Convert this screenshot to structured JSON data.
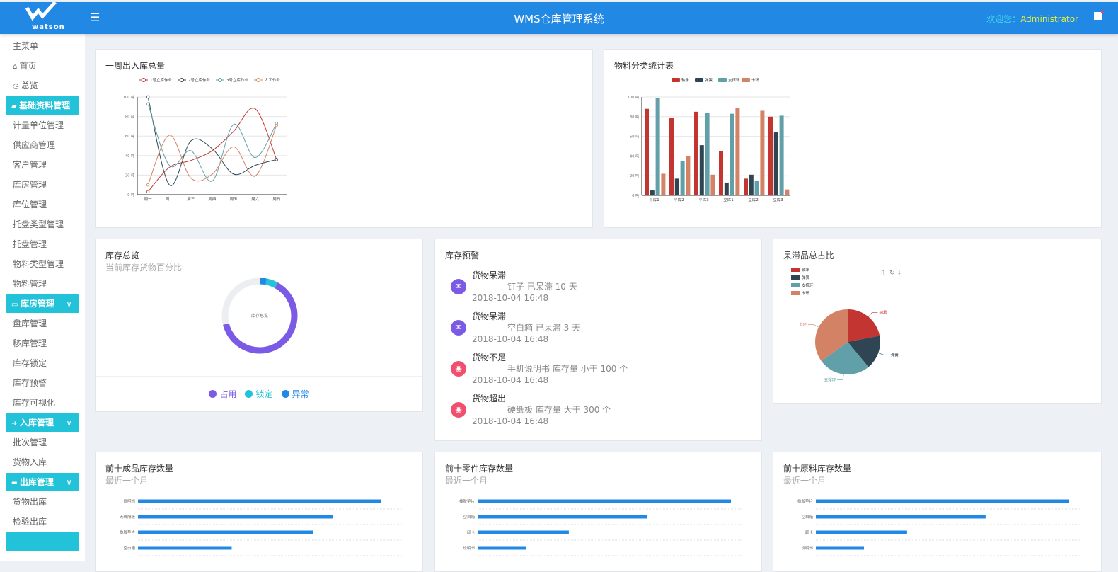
{
  "header": {
    "logo_text": "watson",
    "title": "WMS仓库管理系统",
    "welcome_label": "欢迎您：",
    "user": "Administrator",
    "menu_icon": "hamburger-icon",
    "flag_icon": "flag-icon"
  },
  "sidebar": [
    {
      "type": "item",
      "label": "主菜单"
    },
    {
      "type": "item",
      "label": "首页",
      "icon": "⌂"
    },
    {
      "type": "item",
      "label": "总览",
      "icon": "◷"
    },
    {
      "type": "head",
      "label": "基础资料管理",
      "icon": "▰"
    },
    {
      "type": "item",
      "label": "计量单位管理"
    },
    {
      "type": "item",
      "label": "供应商管理"
    },
    {
      "type": "item",
      "label": "客户管理"
    },
    {
      "type": "item",
      "label": "库房管理"
    },
    {
      "type": "item",
      "label": "库位管理"
    },
    {
      "type": "item",
      "label": "托盘类型管理"
    },
    {
      "type": "item",
      "label": "托盘管理"
    },
    {
      "type": "item",
      "label": "物料类型管理"
    },
    {
      "type": "item",
      "label": "物料管理"
    },
    {
      "type": "head",
      "label": "库房管理",
      "icon": "▭",
      "chevron": "∨"
    },
    {
      "type": "item",
      "label": "盘库管理"
    },
    {
      "type": "item",
      "label": "移库管理"
    },
    {
      "type": "item",
      "label": "库存锁定"
    },
    {
      "type": "item",
      "label": "库存预警"
    },
    {
      "type": "item",
      "label": "库存可视化"
    },
    {
      "type": "head",
      "label": "入库管理",
      "icon": "➜",
      "chevron": "∨"
    },
    {
      "type": "item",
      "label": "批次管理"
    },
    {
      "type": "item",
      "label": "货物入库"
    },
    {
      "type": "head",
      "label": "出库管理",
      "icon": "⬅",
      "chevron": "∨"
    },
    {
      "type": "item",
      "label": "货物出库"
    },
    {
      "type": "item",
      "label": "检验出库"
    },
    {
      "type": "head",
      "label": "",
      "icon": ""
    }
  ],
  "colors": {
    "header": "#2188e4",
    "accent": "#22c3d8",
    "series": [
      "#c23531",
      "#2f4554",
      "#61a0a8",
      "#d48265"
    ],
    "bar": "#2188e4"
  },
  "chart_data": [
    {
      "id": "weekly",
      "type": "line",
      "title": "一周出入库总量",
      "categories": [
        "周一",
        "周二",
        "周三",
        "周四",
        "周五",
        "周六",
        "周日"
      ],
      "ylim": [
        0,
        100
      ],
      "yticks": [
        "0 吨",
        "20 吨",
        "40 吨",
        "60 吨",
        "80 吨",
        "100 吨"
      ],
      "smooth": true,
      "grid": true,
      "legend": "top",
      "series": [
        {
          "name": "1号立库作业",
          "values": [
            3,
            28,
            35,
            45,
            65,
            88,
            36
          ]
        },
        {
          "name": "2号立库作业",
          "values": [
            100,
            10,
            55,
            47,
            21,
            30,
            36
          ]
        },
        {
          "name": "3号立库作业",
          "values": [
            93,
            30,
            45,
            14,
            72,
            38,
            73
          ]
        },
        {
          "name": "人工作业",
          "values": [
            10,
            61,
            17,
            21,
            49,
            19,
            71
          ]
        }
      ]
    },
    {
      "id": "material",
      "type": "bar",
      "title": "物料分类统计表",
      "categories": [
        "平库1",
        "平库2",
        "平库3",
        "立库1",
        "立库2",
        "立库3"
      ],
      "ylim": [
        0,
        100
      ],
      "yticks": [
        "0 吨",
        "20 吨",
        "40 吨",
        "60 吨",
        "80 吨",
        "100 吨"
      ],
      "grid": true,
      "legend": "top",
      "series": [
        {
          "name": "轴承",
          "values": [
            88,
            79,
            85,
            45,
            17,
            80
          ]
        },
        {
          "name": "弹簧",
          "values": [
            5,
            17,
            51,
            13,
            21,
            64
          ]
        },
        {
          "name": "支撑环",
          "values": [
            99,
            35,
            84,
            83,
            15,
            81
          ]
        },
        {
          "name": "卡环",
          "values": [
            22,
            40,
            21,
            89,
            86,
            6
          ]
        }
      ]
    },
    {
      "id": "stock",
      "type": "pie",
      "title": "库存总览",
      "subtitle": "当前库存货物百分比",
      "center_label": "库存总览",
      "donut": true,
      "total": 100,
      "slices": [
        {
          "name": "占用",
          "value": 63,
          "color": "#7b5be6"
        },
        {
          "name": "锁定",
          "value": 5,
          "color": "#22c3d8"
        },
        {
          "name": "异常",
          "value": 3,
          "color": "#2188e4"
        }
      ]
    },
    {
      "id": "stale",
      "type": "pie",
      "title": "呆滞品总占比",
      "legend": "top-left",
      "toolbox": [
        "data-view-icon",
        "refresh-icon",
        "download-icon"
      ],
      "slices": [
        {
          "name": "轴承",
          "value": 22
        },
        {
          "name": "弹簧",
          "value": 17
        },
        {
          "name": "支撑环",
          "value": 26
        },
        {
          "name": "卡环",
          "value": 35
        }
      ]
    },
    {
      "id": "top-finished",
      "type": "bar",
      "orientation": "horizontal",
      "title": "前十成品库存数量",
      "subtitle": "最近一个月",
      "categories": [
        "说明书",
        "无线隔板",
        "橡胶垫片",
        "空白箱"
      ],
      "values": [
        96,
        77,
        69,
        37
      ],
      "xlim": [
        0,
        100
      ]
    },
    {
      "id": "top-parts",
      "type": "bar",
      "orientation": "horizontal",
      "title": "前十零件库存数量",
      "subtitle": "最近一个月",
      "categories": [
        "橡胶垫片",
        "空白箱",
        "卸卡",
        "说明书"
      ],
      "values": [
        100,
        67,
        36,
        19
      ],
      "xlim": [
        0,
        100
      ]
    },
    {
      "id": "top-raw",
      "type": "bar",
      "orientation": "horizontal",
      "title": "前十原料库存数量",
      "subtitle": "最近一个月",
      "categories": [
        "橡胶垫片",
        "空白箱",
        "卸卡",
        "说明书"
      ],
      "values": [
        100,
        67,
        36,
        19
      ],
      "xlim": [
        0,
        100
      ]
    }
  ],
  "warnings": {
    "title": "库存预警",
    "items": [
      {
        "title": "货物呆滞",
        "message": "钉子 已呆滞 10 天",
        "time": "2018-10-04 16:48",
        "icon": "envelope-icon",
        "color": "#7b5be6"
      },
      {
        "title": "货物呆滞",
        "message": "空白箱 已呆滞 3 天",
        "time": "2018-10-04 16:48",
        "icon": "envelope-icon",
        "color": "#7b5be6"
      },
      {
        "title": "货物不足",
        "message": "手机说明书 库存量 小于 100 个",
        "time": "2018-10-04 16:48",
        "icon": "globe-icon",
        "color": "#f0506e"
      },
      {
        "title": "货物超出",
        "message": "硬纸板 库存量 大于 300 个",
        "time": "2018-10-04 16:48",
        "icon": "globe-icon",
        "color": "#f0506e"
      }
    ]
  }
}
